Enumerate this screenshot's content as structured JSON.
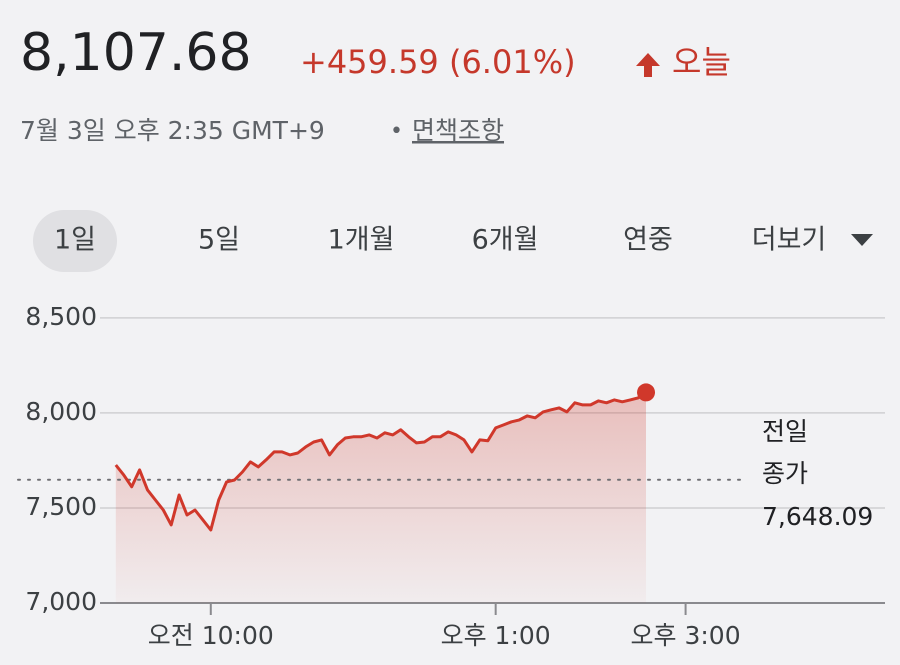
{
  "header": {
    "price": "8,107.68",
    "change": "+459.59 (6.01%)",
    "period": "오늘",
    "timestamp": "7월 3일 오후 2:35 GMT+9",
    "separator": "•",
    "disclaimer": "면책조항"
  },
  "tabs": [
    "1일",
    "5일",
    "1개월",
    "6개월",
    "연중",
    "더보기"
  ],
  "chart_data": {
    "type": "line",
    "color": "#d0382b",
    "x": [
      540,
      545,
      550,
      555,
      560,
      565,
      570,
      575,
      580,
      585,
      590,
      595,
      600,
      605,
      610,
      615,
      620,
      625,
      630,
      635,
      640,
      645,
      650,
      655,
      660,
      665,
      670,
      675,
      680,
      685,
      690,
      695,
      700,
      705,
      710,
      715,
      720,
      725,
      730,
      735,
      740,
      745,
      750,
      755,
      760,
      765,
      770,
      775,
      780,
      785,
      790,
      795,
      800,
      805,
      810,
      815,
      820,
      825,
      830,
      835,
      840,
      845,
      850,
      855,
      860,
      865,
      870,
      875
    ],
    "values": [
      7726,
      7674,
      7611,
      7700,
      7595,
      7542,
      7489,
      7411,
      7568,
      7463,
      7489,
      7437,
      7384,
      7542,
      7637,
      7647,
      7689,
      7742,
      7716,
      7753,
      7795,
      7795,
      7779,
      7789,
      7821,
      7847,
      7858,
      7779,
      7832,
      7868,
      7874,
      7874,
      7884,
      7868,
      7895,
      7884,
      7911,
      7874,
      7842,
      7847,
      7874,
      7874,
      7900,
      7884,
      7858,
      7795,
      7858,
      7853,
      7921,
      7937,
      7953,
      7963,
      7984,
      7974,
      8005,
      8016,
      8026,
      8005,
      8053,
      8042,
      8042,
      8063,
      8053,
      8068,
      8058,
      8068,
      8079,
      8107.68
    ],
    "xlim": [
      530,
      1026
    ],
    "xticks": [
      {
        "value": 600,
        "label": "오전 10:00"
      },
      {
        "value": 780,
        "label": "오후 1:00"
      },
      {
        "value": 900,
        "label": "오후 3:00"
      }
    ],
    "ylim": [
      7000,
      8620
    ],
    "yticks": [
      {
        "value": 7000,
        "label": "7,000"
      },
      {
        "value": 7500,
        "label": "7,500"
      },
      {
        "value": 8000,
        "label": "8,000"
      },
      {
        "value": 8500,
        "label": "8,500"
      }
    ],
    "grid": true,
    "reference_line": {
      "value": 7648.09,
      "label": "7,648.09",
      "caption": [
        "전일",
        "종가"
      ]
    }
  }
}
